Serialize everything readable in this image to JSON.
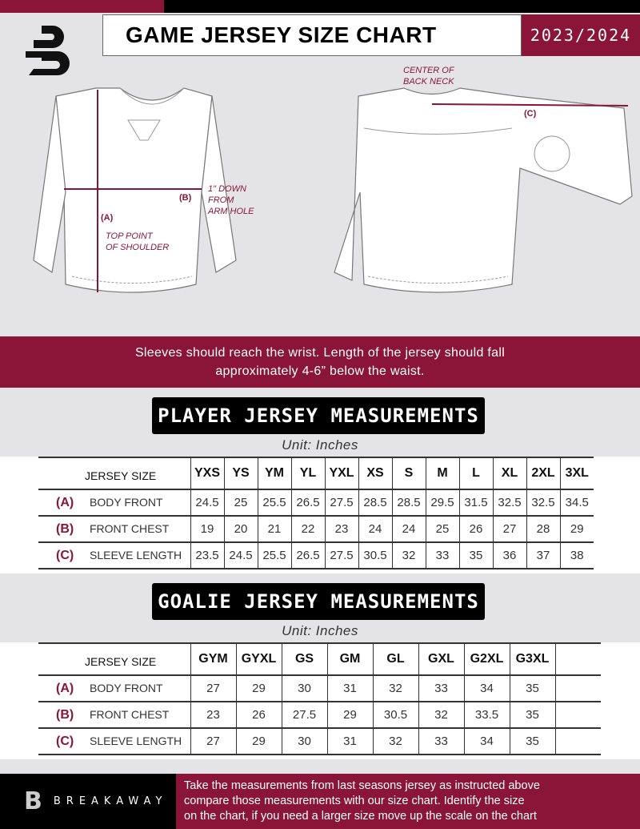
{
  "header": {
    "title": "GAME JERSEY SIZE CHART",
    "season": "2023/2024",
    "logo": "B"
  },
  "colors": {
    "accent": "#8a1538",
    "dark": "#000000",
    "background": "#e4e4e6"
  },
  "diagram": {
    "label_a": "(A)",
    "label_b": "(B)",
    "label_c": "(C)",
    "note_shoulder": [
      "TOP POINT",
      "OF SHOULDER"
    ],
    "note_arm": [
      "1\" DOWN",
      "FROM",
      "ARM HOLE"
    ],
    "note_neck": [
      "CENTER OF",
      "BACK NECK"
    ]
  },
  "guidance": [
    "Sleeves should reach the wrist. Length of the jersey should fall",
    "approximately 4-6” below the waist."
  ],
  "player": {
    "title": "PLAYER JERSEY MEASUREMENTS",
    "unit": "Unit: Inches",
    "size_label": "JERSEY SIZE",
    "sizes": [
      "YXS",
      "YS",
      "YM",
      "YL",
      "YXL",
      "XS",
      "S",
      "M",
      "L",
      "XL",
      "2XL",
      "3XL"
    ],
    "rows": [
      {
        "code": "(A)",
        "name": "BODY FRONT",
        "values": [
          "24.5",
          "25",
          "25.5",
          "26.5",
          "27.5",
          "28.5",
          "28.5",
          "29.5",
          "31.5",
          "32.5",
          "32.5",
          "34.5"
        ]
      },
      {
        "code": "(B)",
        "name": "FRONT CHEST",
        "values": [
          "19",
          "20",
          "21",
          "22",
          "23",
          "24",
          "24",
          "25",
          "26",
          "27",
          "28",
          "29"
        ]
      },
      {
        "code": "(C)",
        "name": "SLEEVE LENGTH",
        "values": [
          "23.5",
          "24.5",
          "25.5",
          "26.5",
          "27.5",
          "30.5",
          "32",
          "33",
          "35",
          "36",
          "37",
          "38"
        ]
      }
    ]
  },
  "goalie": {
    "title": "GOALIE JERSEY MEASUREMENTS",
    "unit": "Unit: Inches",
    "size_label": "JERSEY SIZE",
    "sizes": [
      "GYM",
      "GYXL",
      "GS",
      "GM",
      "GL",
      "GXL",
      "G2XL",
      "G3XL",
      ""
    ],
    "rows": [
      {
        "code": "(A)",
        "name": "BODY FRONT",
        "values": [
          "27",
          "29",
          "30",
          "31",
          "32",
          "33",
          "34",
          "35",
          ""
        ]
      },
      {
        "code": "(B)",
        "name": "FRONT CHEST",
        "values": [
          "23",
          "26",
          "27.5",
          "29",
          "30.5",
          "32",
          "33.5",
          "35",
          ""
        ]
      },
      {
        "code": "(C)",
        "name": "SLEEVE LENGTH",
        "values": [
          "27",
          "29",
          "30",
          "31",
          "32",
          "33",
          "34",
          "35",
          ""
        ]
      }
    ]
  },
  "footer": {
    "brand": "BREAKAWAY",
    "text": [
      "Take the measurements from last seasons jersey as instructed above",
      "compare those measurements  with our size chart. Identify the size",
      "on the chart, if you need a larger size move up the scale on the chart"
    ]
  }
}
